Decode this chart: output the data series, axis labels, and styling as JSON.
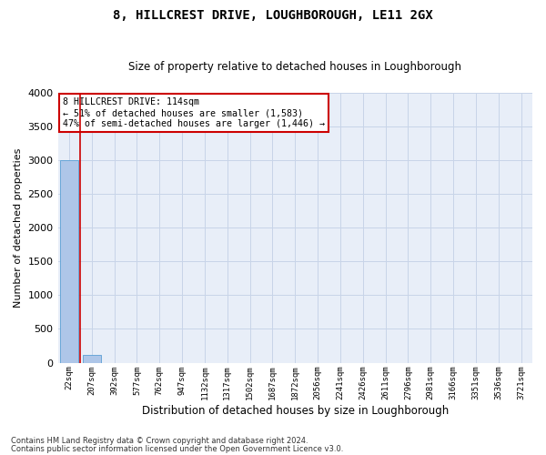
{
  "title": "8, HILLCREST DRIVE, LOUGHBOROUGH, LE11 2GX",
  "subtitle": "Size of property relative to detached houses in Loughborough",
  "xlabel": "Distribution of detached houses by size in Loughborough",
  "ylabel": "Number of detached properties",
  "categories": [
    "22sqm",
    "207sqm",
    "392sqm",
    "577sqm",
    "762sqm",
    "947sqm",
    "1132sqm",
    "1317sqm",
    "1502sqm",
    "1687sqm",
    "1872sqm",
    "2056sqm",
    "2241sqm",
    "2426sqm",
    "2611sqm",
    "2796sqm",
    "2981sqm",
    "3166sqm",
    "3351sqm",
    "3536sqm",
    "3721sqm"
  ],
  "bar_heights": [
    3000,
    120,
    0,
    0,
    0,
    0,
    0,
    0,
    0,
    0,
    0,
    0,
    0,
    0,
    0,
    0,
    0,
    0,
    0,
    0,
    0
  ],
  "bar_color": "#aec6e8",
  "bar_edge_color": "#5a9fd4",
  "vline_color": "#cc0000",
  "vline_x": 0.5,
  "ylim": [
    0,
    4000
  ],
  "yticks": [
    0,
    500,
    1000,
    1500,
    2000,
    2500,
    3000,
    3500,
    4000
  ],
  "annotation_title": "8 HILLCREST DRIVE: 114sqm",
  "annotation_line1": "← 51% of detached houses are smaller (1,583)",
  "annotation_line2": "47% of semi-detached houses are larger (1,446) →",
  "annotation_box_color": "#ffffff",
  "annotation_border_color": "#cc0000",
  "grid_color": "#c8d4e8",
  "bg_color": "#e8eef8",
  "footer1": "Contains HM Land Registry data © Crown copyright and database right 2024.",
  "footer2": "Contains public sector information licensed under the Open Government Licence v3.0."
}
